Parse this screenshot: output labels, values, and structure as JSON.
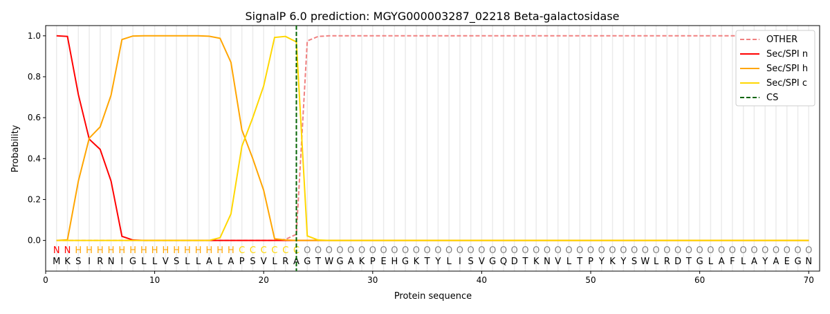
{
  "chart_data": {
    "type": "line",
    "title": "SignalP 6.0 prediction: MGYG000003287_02218 Beta-galactosidase",
    "xlabel": "Protein sequence",
    "ylabel": "Probability",
    "xlim": [
      0,
      71
    ],
    "ylim": [
      -0.15,
      1.05
    ],
    "xticks": [
      0,
      10,
      20,
      30,
      40,
      50,
      60,
      70
    ],
    "yticks": [
      0.0,
      0.2,
      0.4,
      0.6,
      0.8,
      1.0
    ],
    "sequence": "MKSIRNIGLLVSLLALAPSVLRAGTWGAKPEHGKTYLISVGQDTKNVLTPYKYSWLRDTGLAFLAYAEGN",
    "labels": "NNHHHHHHHHHHHHHHHCCCCCCOOOOOOOOOOOOOOOOOOOOOOOOOOOOOOOOOOOOOOOOOOOOOOO",
    "label_colors": {
      "N": "#ff0000",
      "H": "#ffa500",
      "C": "#ffd700",
      "O": "#808080"
    },
    "cs_position": 23,
    "legend_position": "top-right",
    "series": [
      {
        "name": "OTHER",
        "color": "#f08080",
        "dash": true,
        "values": [
          0,
          0,
          0,
          0,
          0,
          0,
          0,
          0,
          0,
          0,
          0,
          0,
          0,
          0,
          0,
          0,
          0,
          0,
          0,
          0,
          0,
          0.005,
          0.03,
          0.975,
          0.997,
          1,
          1,
          1,
          1,
          1,
          1,
          1,
          1,
          1,
          1,
          1,
          1,
          1,
          1,
          1,
          1,
          1,
          1,
          1,
          1,
          1,
          1,
          1,
          1,
          1,
          1,
          1,
          1,
          1,
          1,
          1,
          1,
          1,
          1,
          1,
          1,
          1,
          1,
          1,
          1,
          1,
          1,
          1,
          1,
          1
        ]
      },
      {
        "name": "Sec/SPI n",
        "color": "#ff0000",
        "dash": false,
        "values": [
          1.0,
          0.997,
          0.713,
          0.495,
          0.445,
          0.29,
          0.02,
          0.002,
          0,
          0,
          0,
          0,
          0,
          0,
          0,
          0,
          0,
          0,
          0,
          0,
          0,
          0,
          0,
          0,
          0,
          0,
          0,
          0,
          0,
          0,
          0,
          0,
          0,
          0,
          0,
          0,
          0,
          0,
          0,
          0,
          0,
          0,
          0,
          0,
          0,
          0,
          0,
          0,
          0,
          0,
          0,
          0,
          0,
          0,
          0,
          0,
          0,
          0,
          0,
          0,
          0,
          0,
          0,
          0,
          0,
          0,
          0,
          0,
          0,
          0
        ]
      },
      {
        "name": "Sec/SPI h",
        "color": "#ffa500",
        "dash": false,
        "values": [
          0,
          0.003,
          0.29,
          0.5,
          0.555,
          0.71,
          0.982,
          0.999,
          1,
          1,
          1,
          1,
          1,
          1,
          0.998,
          0.988,
          0.87,
          0.54,
          0.4,
          0.245,
          0.008,
          0.002,
          0,
          0,
          0,
          0,
          0,
          0,
          0,
          0,
          0,
          0,
          0,
          0,
          0,
          0,
          0,
          0,
          0,
          0,
          0,
          0,
          0,
          0,
          0,
          0,
          0,
          0,
          0,
          0,
          0,
          0,
          0,
          0,
          0,
          0,
          0,
          0,
          0,
          0,
          0,
          0,
          0,
          0,
          0,
          0,
          0,
          0,
          0,
          0
        ]
      },
      {
        "name": "Sec/SPI c",
        "color": "#ffd700",
        "dash": false,
        "values": [
          0,
          0,
          0,
          0,
          0,
          0,
          0,
          0,
          0,
          0,
          0,
          0,
          0,
          0,
          0,
          0.013,
          0.13,
          0.46,
          0.6,
          0.755,
          0.992,
          0.997,
          0.97,
          0.022,
          0.002,
          0,
          0,
          0,
          0,
          0,
          0,
          0,
          0,
          0,
          0,
          0,
          0,
          0,
          0,
          0,
          0,
          0,
          0,
          0,
          0,
          0,
          0,
          0,
          0,
          0,
          0,
          0,
          0,
          0,
          0,
          0,
          0,
          0,
          0,
          0,
          0,
          0,
          0,
          0,
          0,
          0,
          0,
          0,
          0,
          0
        ]
      },
      {
        "name": "CS",
        "color": "#006400",
        "dash": true,
        "values": []
      }
    ]
  }
}
